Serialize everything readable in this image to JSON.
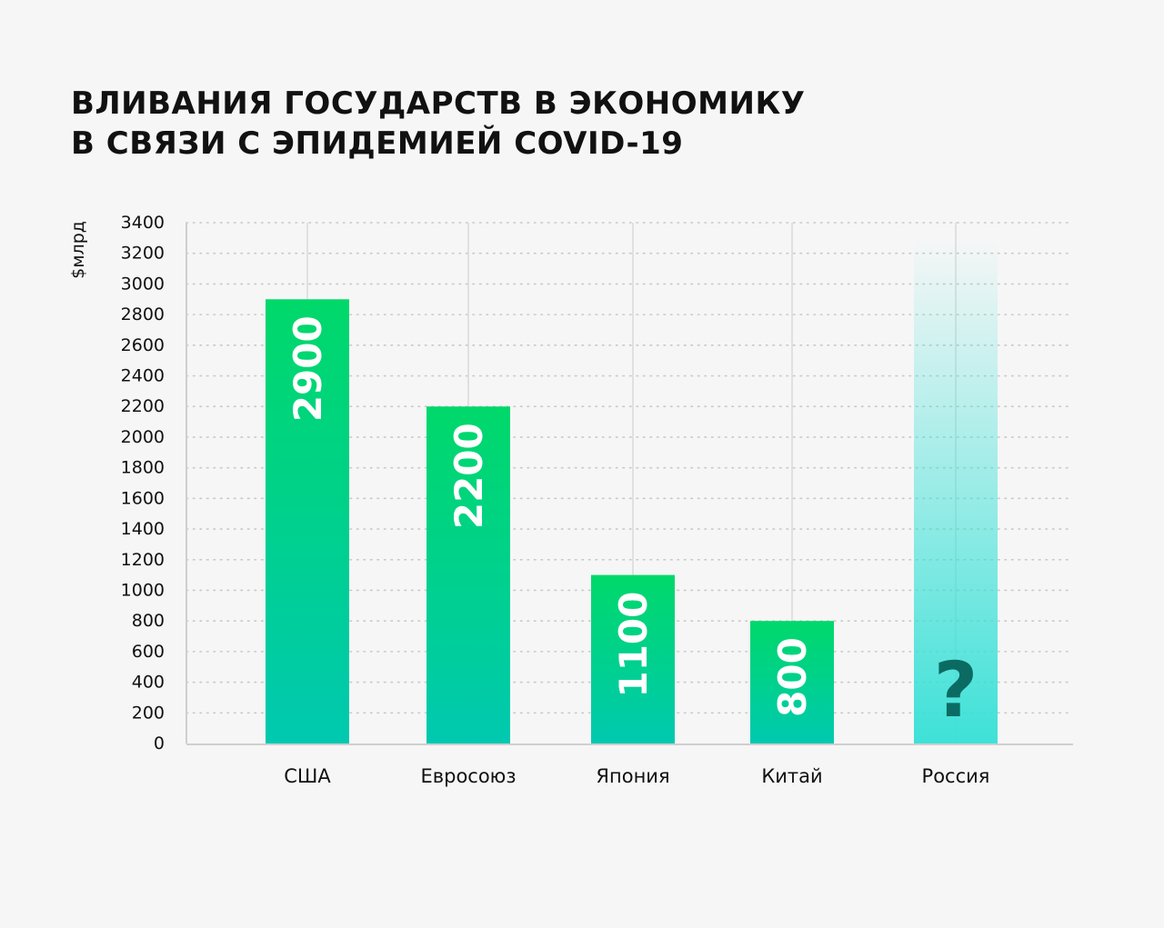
{
  "chart_data": {
    "type": "bar",
    "title_lines": [
      "ВЛИВАНИЯ ГОСУДАРСТВ В ЭКОНОМИКУ",
      "В СВЯЗИ С ЭПИДЕМИЕЙ COVID-19"
    ],
    "ylabel": "$млрд",
    "xlabel": "",
    "ylim": [
      0,
      3400
    ],
    "yticks": [
      0,
      200,
      400,
      600,
      800,
      1000,
      1200,
      1400,
      1600,
      1800,
      2000,
      2200,
      2400,
      2600,
      2800,
      3000,
      3200,
      3400
    ],
    "grid": true,
    "categories": [
      "США",
      "Евросоюз",
      "Япония",
      "Китай",
      "Россия"
    ],
    "values": [
      2900,
      2200,
      1100,
      800,
      null
    ],
    "bar_labels": [
      "2900",
      "2200",
      "1100",
      "800",
      "?"
    ],
    "unknown_bar_range": [
      0,
      3300
    ]
  },
  "colors": {
    "bar_top": "#00d86a",
    "bar_bottom": "#00c9b0",
    "unknown_bar": "#34e0d6",
    "question_mark": "#0b6b62",
    "grid": "#c9c9c9",
    "axis": "#cfcfcf",
    "bar_label": "#ffffff"
  }
}
